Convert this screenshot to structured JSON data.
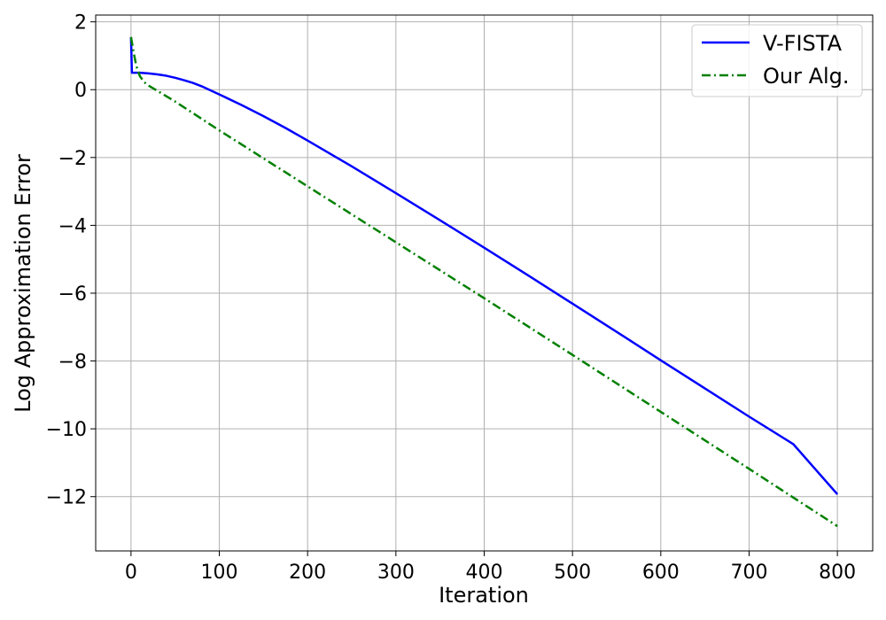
{
  "chart_data": {
    "type": "line",
    "title": "",
    "xlabel": "Iteration",
    "ylabel": "Log Approximation Error",
    "xlim": [
      -40,
      840
    ],
    "ylim": [
      -13.6,
      2.2
    ],
    "xticks": [
      0,
      100,
      200,
      300,
      400,
      500,
      600,
      700,
      800
    ],
    "yticks": [
      2,
      0,
      -2,
      -4,
      -6,
      -8,
      -10,
      -12
    ],
    "grid": true,
    "legend": "top-right",
    "series": [
      {
        "name": "V-FISTA",
        "color": "#0000ff",
        "style": "solid",
        "x": [
          0,
          1,
          2,
          10,
          20,
          30,
          40,
          50,
          60,
          70,
          80,
          90,
          100,
          125,
          150,
          175,
          200,
          250,
          300,
          350,
          400,
          450,
          500,
          550,
          600,
          650,
          700,
          750,
          800
        ],
        "y": [
          1.55,
          0.5,
          0.5,
          0.5,
          0.48,
          0.45,
          0.41,
          0.35,
          0.28,
          0.2,
          0.1,
          -0.02,
          -0.14,
          -0.45,
          -0.78,
          -1.13,
          -1.5,
          -2.26,
          -3.05,
          -3.85,
          -4.66,
          -5.48,
          -6.31,
          -7.14,
          -7.98,
          -8.81,
          -9.64,
          -10.45,
          -11.93
        ]
      },
      {
        "name": "Our Alg.",
        "color": "#008000",
        "style": "dashdot",
        "x": [
          0,
          3,
          6,
          10,
          15,
          20,
          50,
          100,
          200,
          300,
          400,
          500,
          600,
          700,
          800
        ],
        "y": [
          1.55,
          1.1,
          0.7,
          0.4,
          0.22,
          0.12,
          -0.35,
          -1.2,
          -2.85,
          -4.5,
          -6.15,
          -7.82,
          -9.5,
          -11.18,
          -12.87
        ]
      }
    ]
  }
}
